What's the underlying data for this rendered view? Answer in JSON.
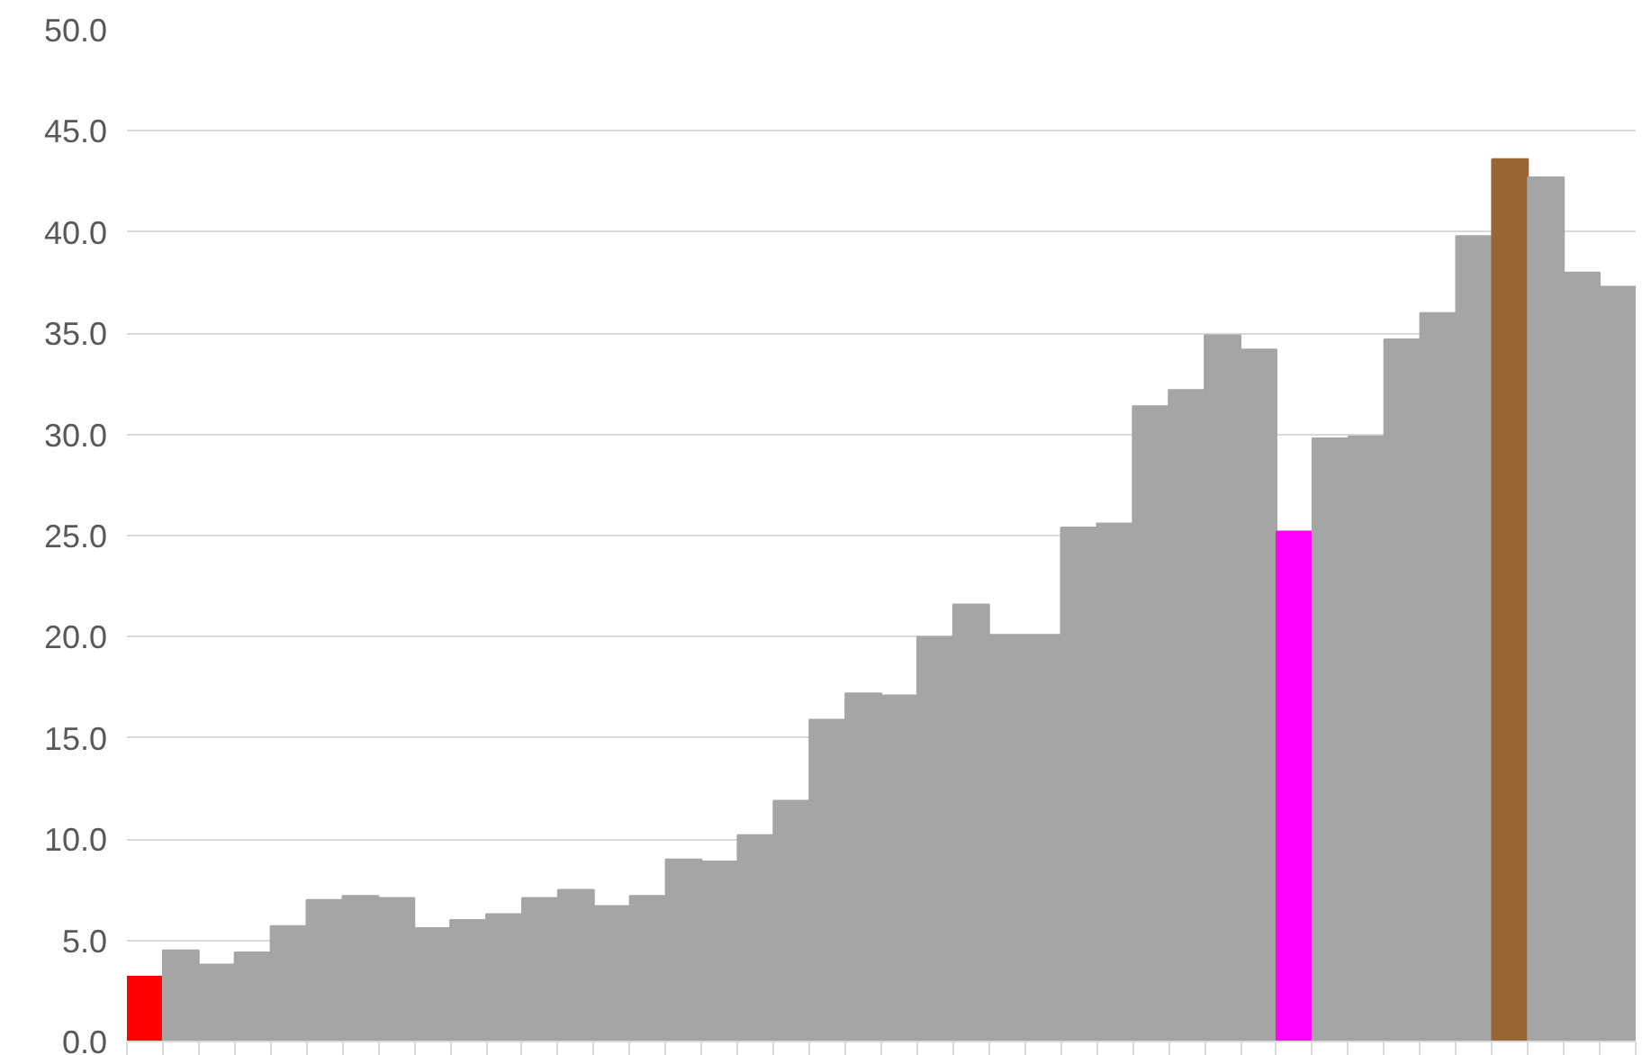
{
  "chart_data": {
    "type": "bar",
    "categories": [
      null,
      null,
      null,
      null,
      null,
      null,
      null,
      null,
      null,
      null,
      null,
      null,
      null,
      null,
      null,
      null,
      null,
      null,
      null,
      null,
      null,
      null,
      null,
      null,
      null,
      null,
      null,
      null,
      null,
      null,
      null,
      null,
      null,
      null,
      null,
      null,
      null,
      null,
      null,
      null,
      null,
      null
    ],
    "values": [
      3.2,
      4.5,
      3.8,
      4.4,
      5.7,
      7.0,
      7.2,
      7.1,
      5.6,
      6.0,
      6.3,
      7.1,
      7.5,
      6.7,
      7.2,
      9.0,
      8.9,
      10.2,
      11.9,
      15.9,
      17.2,
      17.1,
      20.0,
      21.6,
      20.1,
      20.1,
      25.4,
      25.6,
      31.4,
      32.2,
      34.9,
      34.2,
      25.2,
      29.8,
      29.9,
      34.7,
      36.0,
      39.8,
      43.6,
      42.7,
      38.0,
      37.3
    ],
    "colors": [
      "#ff0000",
      "#a5a5a5",
      "#a5a5a5",
      "#a5a5a5",
      "#a5a5a5",
      "#a5a5a5",
      "#a5a5a5",
      "#a5a5a5",
      "#a5a5a5",
      "#a5a5a5",
      "#a5a5a5",
      "#a5a5a5",
      "#a5a5a5",
      "#a5a5a5",
      "#a5a5a5",
      "#a5a5a5",
      "#a5a5a5",
      "#a5a5a5",
      "#a5a5a5",
      "#a5a5a5",
      "#a5a5a5",
      "#a5a5a5",
      "#a5a5a5",
      "#a5a5a5",
      "#a5a5a5",
      "#a5a5a5",
      "#a5a5a5",
      "#a5a5a5",
      "#a5a5a5",
      "#a5a5a5",
      "#a5a5a5",
      "#a5a5a5",
      "#ff00ff",
      "#a5a5a5",
      "#a5a5a5",
      "#a5a5a5",
      "#a5a5a5",
      "#a5a5a5",
      "#996633",
      "#a5a5a5",
      "#a5a5a5",
      "#a5a5a5"
    ],
    "ylim": [
      0,
      50
    ],
    "yticks": [
      {
        "value": 0,
        "label": "0.0"
      },
      {
        "value": 5,
        "label": "5.0"
      },
      {
        "value": 10,
        "label": "10.0"
      },
      {
        "value": 15,
        "label": "15.0"
      },
      {
        "value": 20,
        "label": "20.0"
      },
      {
        "value": 25,
        "label": "25.0"
      },
      {
        "value": 30,
        "label": "30.0"
      },
      {
        "value": 35,
        "label": "35.0"
      },
      {
        "value": 40,
        "label": "40.0"
      },
      {
        "value": 45,
        "label": "45.0"
      },
      {
        "value": 50,
        "label": "50.0"
      }
    ],
    "grid": "y",
    "tick_labels": "y"
  }
}
